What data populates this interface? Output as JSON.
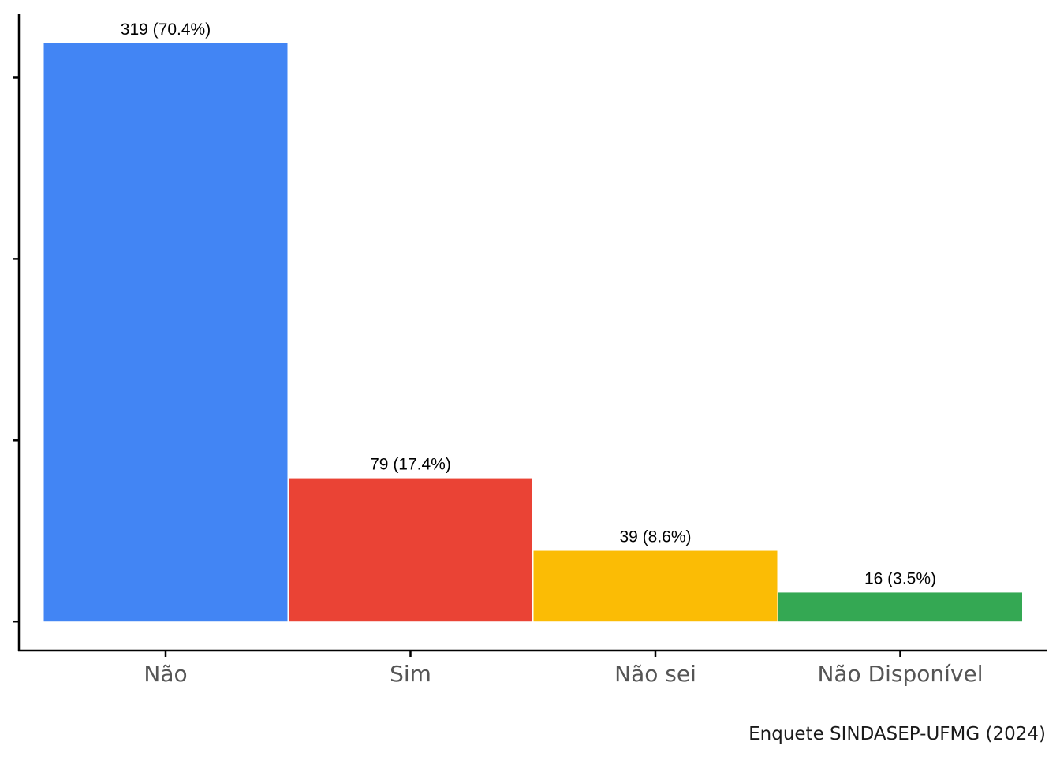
{
  "chart_data": {
    "type": "bar",
    "categories": [
      "Não",
      "Sim",
      "Não sei",
      "Não Disponível"
    ],
    "values": [
      319,
      79,
      39,
      16
    ],
    "labels": [
      "319 (70.4%)",
      "79 (17.4%)",
      "39 (8.6%)",
      "16 (3.5%)"
    ],
    "colors": [
      "#4285F4",
      "#EA4335",
      "#FBBC05",
      "#34A853"
    ],
    "ylim": [
      -16,
      335
    ],
    "yticks": [
      0,
      100,
      200,
      300
    ],
    "ytick_labels_visible": false,
    "grid": false,
    "legend": "none",
    "caption": "Enquete SINDASEP-UFMG (2024)"
  }
}
